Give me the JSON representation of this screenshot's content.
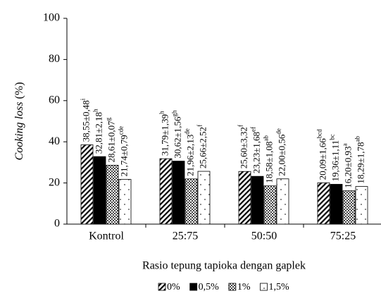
{
  "chart_data": {
    "type": "bar",
    "y_label": "Cooking loss (%)",
    "x_label": "Rasio tepung tapioka dengan gaplek",
    "categories": [
      "Kontrol",
      "25:75",
      "50:50",
      "75:25"
    ],
    "ylim": [
      0,
      100
    ],
    "yticks": [
      0,
      20,
      40,
      60,
      80,
      100
    ],
    "legend": "bottom",
    "series": [
      {
        "name": "0%",
        "color": "#000000",
        "pattern": "hatch",
        "values": [
          38.55,
          31.79,
          25.6,
          20.09
        ],
        "value_labels": [
          "38,55±0,48",
          "31,79±1,39",
          "25,60±3,32",
          "20,09±1,66"
        ],
        "letters": [
          "i",
          "h",
          "f",
          "bcd"
        ]
      },
      {
        "name": "0,5%",
        "color": "#000000",
        "pattern": "solid",
        "values": [
          32.81,
          30.62,
          23.23,
          19.36
        ],
        "value_labels": [
          "32,81±2,18",
          "30,62±1,56",
          "23,23±1,68",
          "19,36±1,11"
        ],
        "letters": [
          "h",
          "gh",
          "ef",
          "bc"
        ]
      },
      {
        "name": "1%",
        "color": "#000000",
        "pattern": "cross",
        "values": [
          28.61,
          21.96,
          18.58,
          16.2
        ],
        "value_labels": [
          "28,61±0,07",
          "21,96±2,13",
          "18,58±1,08",
          "16,20±0,93"
        ],
        "letters": [
          "g",
          "de",
          "ab",
          "a"
        ]
      },
      {
        "name": "1,5%",
        "color": "#000000",
        "pattern": "dots",
        "values": [
          21.74,
          25.66,
          22.0,
          18.29
        ],
        "value_labels": [
          "21,74±0,79",
          "25,66±2,52",
          "22,00±0,56",
          "18,29±1,78"
        ],
        "letters": [
          "cde",
          "f",
          "de",
          "ab"
        ]
      }
    ]
  }
}
